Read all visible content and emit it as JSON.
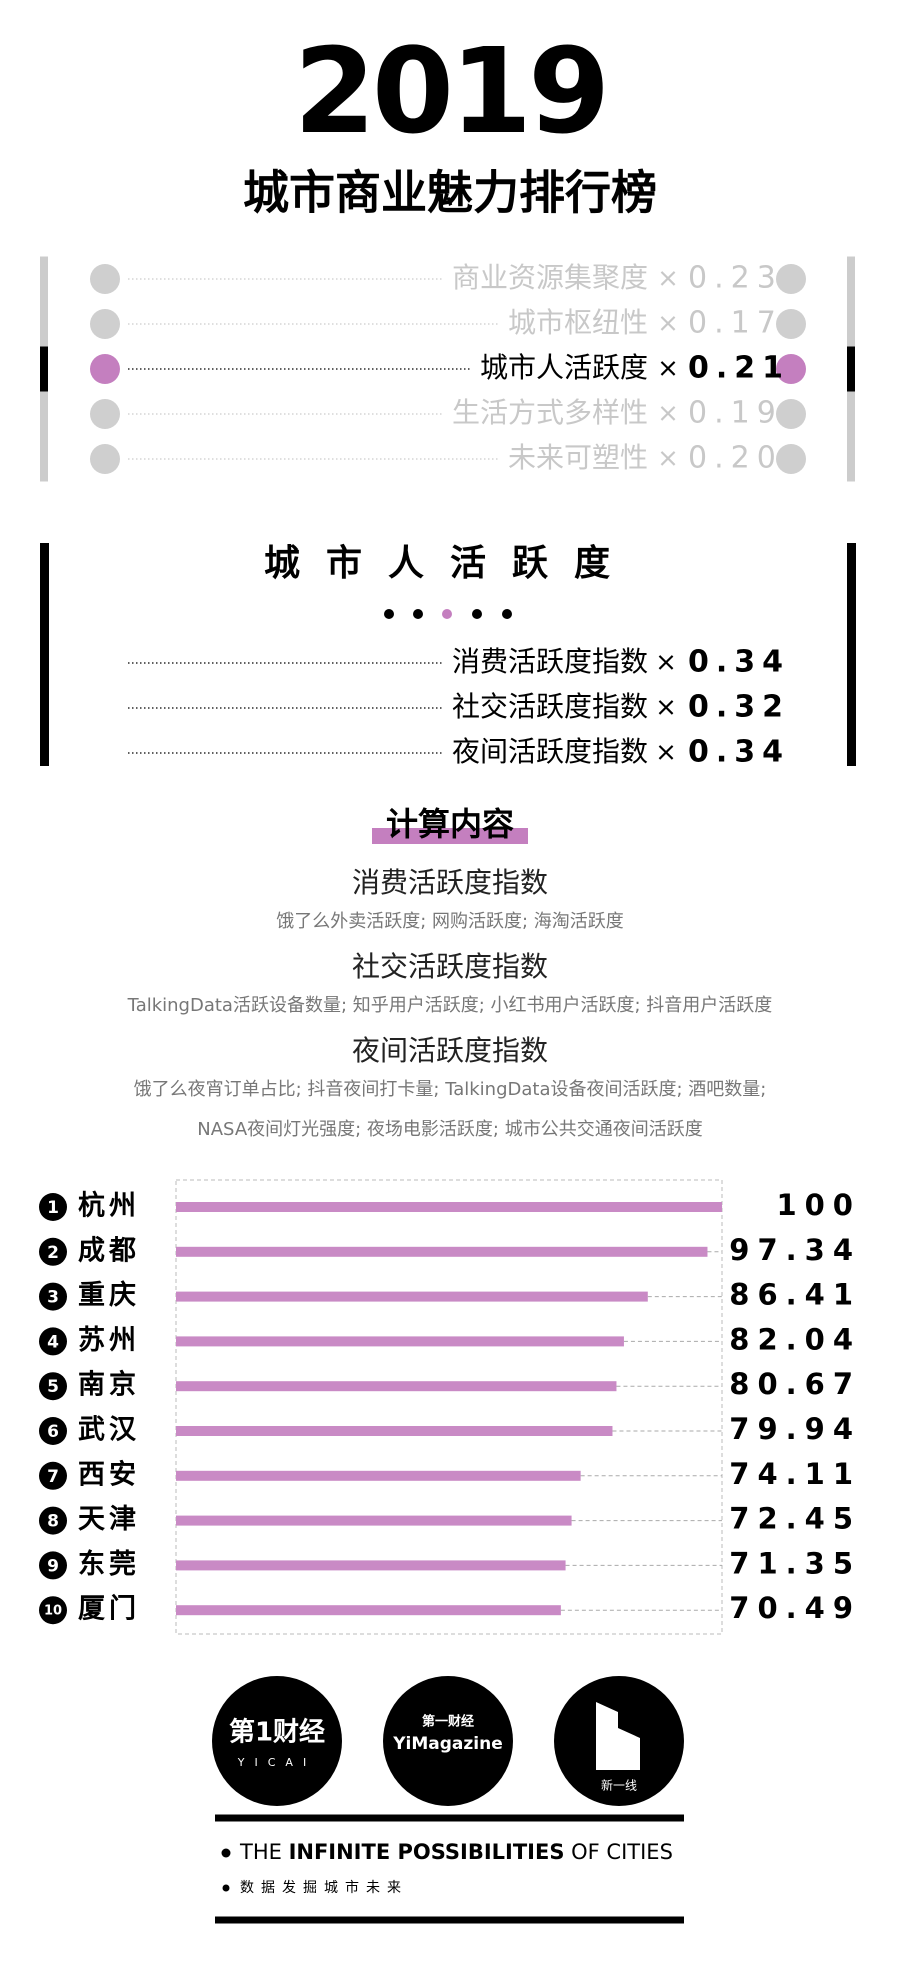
{
  "year": "2019",
  "title": "城市商业魅力排行榜",
  "times_sign": "×",
  "accent_color": "#c47fbf",
  "weights": {
    "active": 2,
    "rows": [
      {
        "label": "商业资源集聚度",
        "weight": 0.23
      },
      {
        "label": "城市枢纽性",
        "weight": 0.17
      },
      {
        "label": "城市人活跃度",
        "weight": 0.21
      },
      {
        "label": "生活方式多样性",
        "weight": 0.19
      },
      {
        "label": "未来可塑性",
        "weight": {
          "value": 0.2,
          "label": "0.20"
        }
      }
    ]
  },
  "section": {
    "heading": "城市人活跃度",
    "rows": [
      {
        "label": "消费活跃度指数",
        "weight": 0.34
      },
      {
        "label": "社交活跃度指数",
        "weight": 0.32
      },
      {
        "label": "夜间活跃度指数",
        "weight": 0.34
      }
    ]
  },
  "content": {
    "heading": "计算内容",
    "items": [
      {
        "title": "消费活跃度指数",
        "lines": [
          "饿了么外卖活跃度; 网购活跃度; 海淘活跃度"
        ]
      },
      {
        "title": "社交活跃度指数",
        "lines": [
          "TalkingData活跃设备数量; 知乎用户活跃度; 小红书用户活跃度; 抖音用户活跃度"
        ]
      },
      {
        "title": "夜间活跃度指数",
        "lines": [
          "饿了么夜宵订单占比; 抖音夜间打卡量; TalkingData设备夜间活跃度; 酒吧数量;",
          "NASA夜间灯光强度; 夜场电影活跃度; 城市公共交通夜间活跃度"
        ]
      }
    ]
  },
  "chart_data": {
    "type": "bar",
    "orientation": "horizontal",
    "ranks": [
      1,
      2,
      3,
      4,
      5,
      6,
      7,
      8,
      9,
      10
    ],
    "categories": [
      "杭州",
      "成都",
      "重庆",
      "苏州",
      "南京",
      "武汉",
      "西安",
      "天津",
      "东莞",
      "厦门"
    ],
    "values": [
      100,
      97.34,
      86.41,
      82.04,
      80.67,
      79.94,
      74.11,
      72.45,
      71.35,
      70.49
    ],
    "color": "#c98ac5",
    "xlim": [
      0,
      100
    ]
  },
  "logos": [
    "第1财经",
    "YICAI",
    "第一财经",
    "YiMagazine",
    "新一线"
  ],
  "footer": {
    "tagline": [
      "THE ",
      "INFINITE POSSIBILITIES",
      " OF CITIES"
    ],
    "subtitle": "数据发掘城市未来"
  }
}
